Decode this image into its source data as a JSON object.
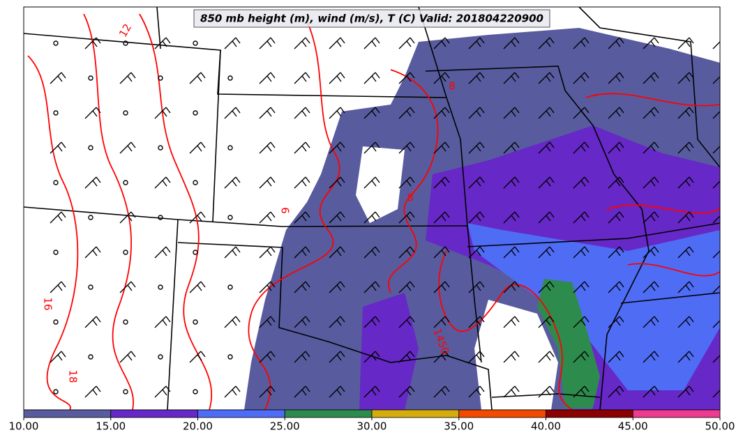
{
  "map": {
    "title": "850 mb height (m), wind (m/s), T (C) Valid: 201804220900",
    "colorbar": {
      "ticks": [
        {
          "value": 10,
          "label": "10.00"
        },
        {
          "value": 15,
          "label": "15.00"
        },
        {
          "value": 20,
          "label": "20.00"
        },
        {
          "value": 25,
          "label": "25.00"
        },
        {
          "value": 30,
          "label": "30.00"
        },
        {
          "value": 35,
          "label": "35.00"
        },
        {
          "value": 40,
          "label": "40.00"
        },
        {
          "value": 45,
          "label": "45.00"
        },
        {
          "value": 50,
          "label": "50.00"
        }
      ],
      "colors": [
        "#585c9e",
        "#6628c6",
        "#4f6cf5",
        "#2e8b4e",
        "#d4ac0d",
        "#f24a00",
        "#8b0000",
        "#ee3a90"
      ]
    },
    "contour_labels": [
      "12",
      "8",
      "8",
      "9",
      "16",
      "18",
      "1450"
    ]
  }
}
